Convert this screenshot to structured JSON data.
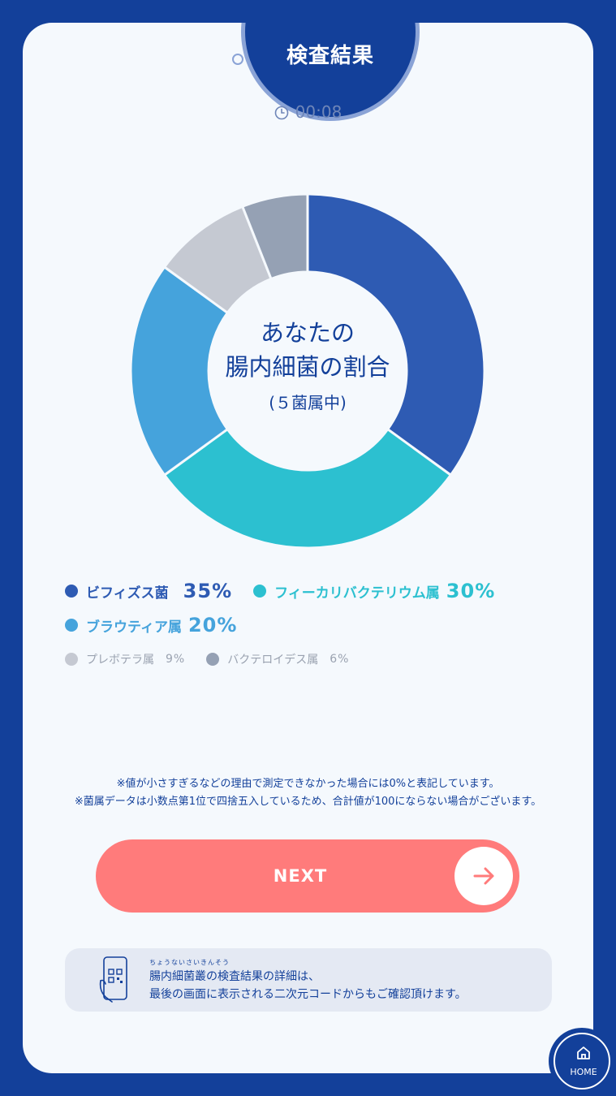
{
  "header": {
    "title": "検査結果",
    "timer": "00:08"
  },
  "center": {
    "line1": "あなたの",
    "line2": "腸内細菌の割合",
    "sub": "(５菌属中)"
  },
  "chart_data": {
    "type": "pie",
    "categories": [
      "ビフィズス菌",
      "フィーカリバクテリウム属",
      "ブラウティア属",
      "プレボテラ属",
      "バクテロイデス属"
    ],
    "values": [
      35,
      30,
      20,
      9,
      6
    ],
    "colors": [
      "#2e5bb3",
      "#2cc0d0",
      "#45a3dc",
      "#c5c9d2",
      "#95a1b4"
    ]
  },
  "legend": {
    "main": [
      {
        "name": "ビフィズス菌",
        "value": "35%",
        "color": "#2e5bb3"
      },
      {
        "name": "フィーカリバクテリウム属",
        "value": "30%",
        "color": "#2cc0d0"
      },
      {
        "name": "ブラウティア属",
        "value": "20%",
        "color": "#45a3dc"
      }
    ],
    "minor": [
      {
        "name": "プレボテラ属",
        "value": "9%",
        "color": "#c5c9d2"
      },
      {
        "name": "バクテロイデス属",
        "value": "6%",
        "color": "#95a1b4"
      }
    ],
    "minor_text_color": "#9aa2b0"
  },
  "notes": {
    "line1": "※値が小さすぎるなどの理由で測定できなかった場合には0%と表記しています。",
    "line2": "※菌属データは小数点第1位で四捨五入しているため、合計値が100にならない場合がございます。"
  },
  "next_button": {
    "label": "NEXT",
    "icon": "arrow-right-icon"
  },
  "info": {
    "ruby": "ちょうないさいきんそう",
    "line1": "腸内細菌叢の検査結果の詳細は、",
    "line2": "最後の画面に表示される二次元コードからもご確認頂けます。",
    "icon": "phone-qr-icon"
  },
  "home_button": {
    "label": "HOME",
    "icon": "home-icon"
  }
}
